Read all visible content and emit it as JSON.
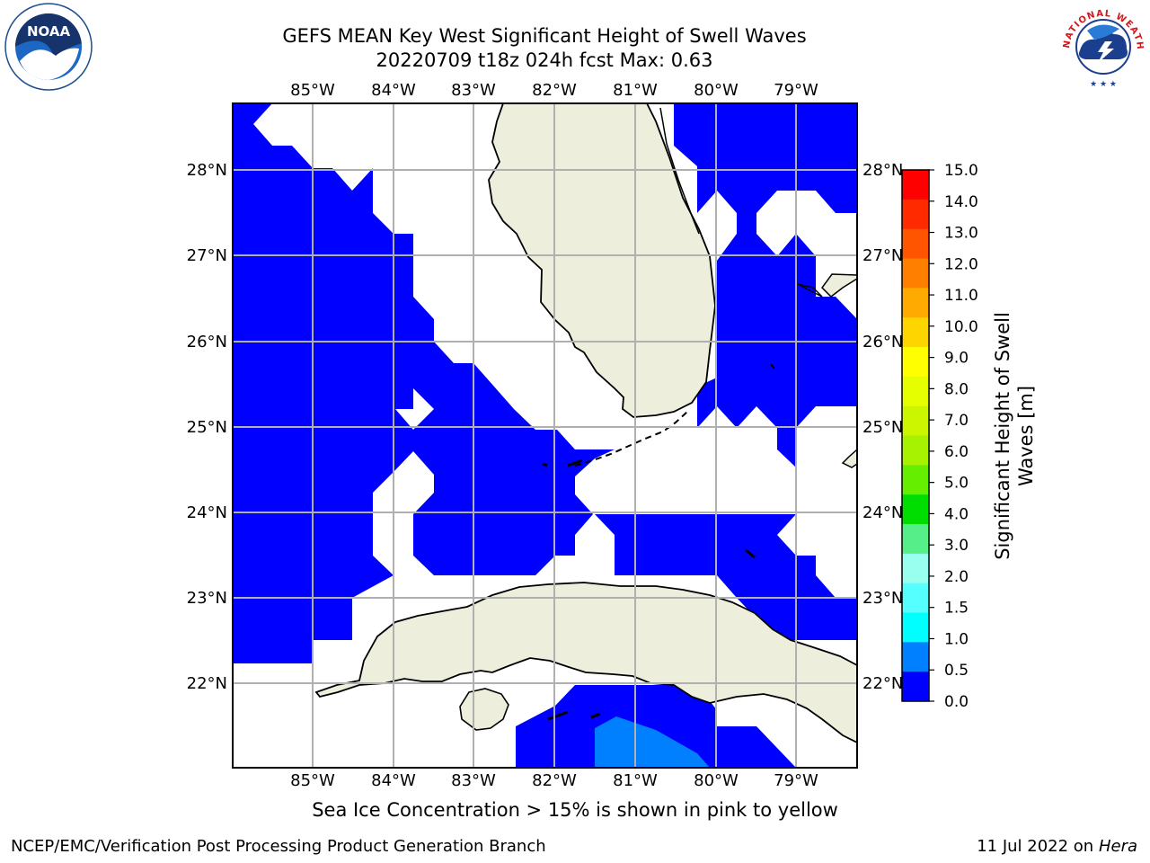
{
  "header": {
    "title_line1": "GEFS MEAN Key West Significant Height of Swell Waves",
    "title_line2": "20220709 t18z 024h fcst   Max: 0.63"
  },
  "logos": {
    "left": {
      "name": "noaa-logo",
      "text": "NOAA",
      "ring_text": "NATIONAL OCEANIC AND ATMOSPHERIC ADMINISTRATION · U.S. DEPARTMENT OF COMMERCE"
    },
    "right": {
      "name": "nws-logo",
      "ring_text": "NATIONAL WEATHER SERVICE"
    }
  },
  "map": {
    "lon_labels": [
      "85°W",
      "84°W",
      "83°W",
      "82°W",
      "81°W",
      "80°W",
      "79°W"
    ],
    "lat_labels": [
      "28°N",
      "27°N",
      "26°N",
      "25°N",
      "24°N",
      "23°N",
      "22°N"
    ],
    "land_color": "#eeeedd",
    "grid_color": "#b0b0b0"
  },
  "colorbar": {
    "label": "Significant Height of Swell Waves [m]",
    "ticks": [
      "15.0",
      "14.0",
      "13.0",
      "12.0",
      "11.0",
      "10.0",
      "9.0",
      "8.0",
      "7.0",
      "6.0",
      "5.0",
      "4.0",
      "3.0",
      "2.0",
      "1.5",
      "1.0",
      "0.5",
      "0.0"
    ],
    "colors": [
      "#ff0000",
      "#ff2a00",
      "#ff5500",
      "#ff8000",
      "#ffaa00",
      "#ffd500",
      "#ffff00",
      "#e6ff00",
      "#ccf500",
      "#a6f200",
      "#66ee00",
      "#00dd00",
      "#55ee88",
      "#99ffee",
      "#55ffff",
      "#00ffff",
      "#0080ff",
      "#0000ff"
    ]
  },
  "note": "Sea Ice Concentration > 15% is shown in pink to yellow",
  "footer": {
    "left": "NCEP/EMC/Verification Post Processing Product Generation Branch",
    "right_prefix": "11 Jul 2022 on ",
    "right_host": "Hera"
  }
}
